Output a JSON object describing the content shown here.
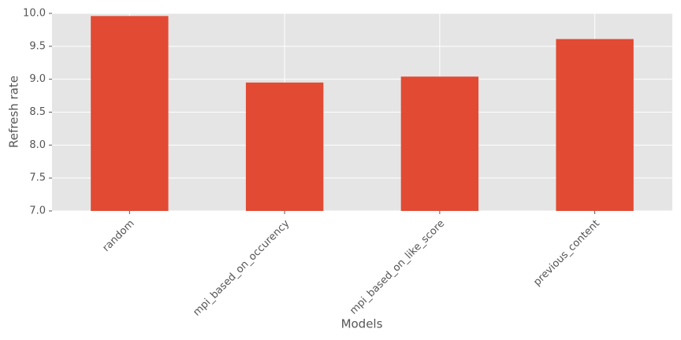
{
  "chart_data": {
    "type": "bar",
    "x_label": "Models",
    "y_label": "Refresh rate",
    "categories": [
      "random",
      "mpi_based_on_occurency",
      "mpi_based_on_like_score",
      "previous_content"
    ],
    "values": [
      9.96,
      8.95,
      9.04,
      9.61
    ],
    "color": "#E24A33",
    "ylim": [
      7.0,
      10.0
    ],
    "yticks": [
      {
        "value": 7.0,
        "label": "7.0"
      },
      7.5,
      {
        "value": 8.0,
        "label": "8.0"
      },
      8.5,
      {
        "value": 9.0,
        "label": "9.0"
      },
      9.5,
      {
        "value": 10.0,
        "label": "10.0"
      }
    ],
    "grid": true
  }
}
